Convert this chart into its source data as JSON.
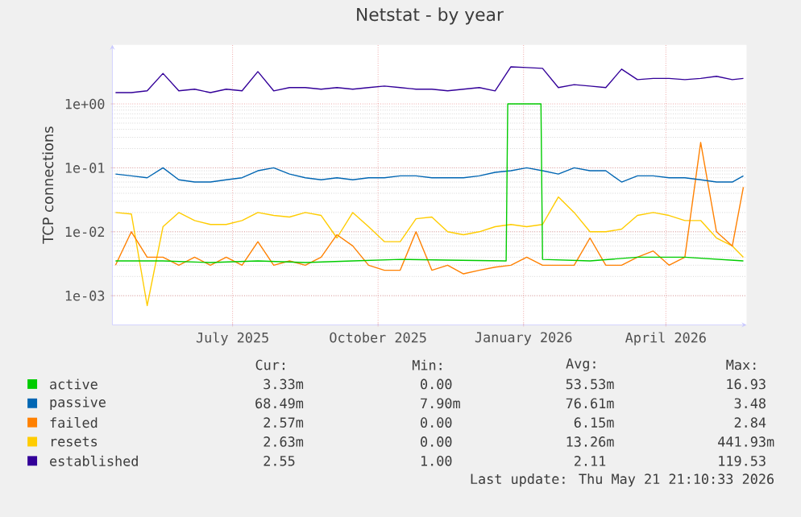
{
  "chart_data": {
    "type": "line",
    "title": "Netstat - by year",
    "ylabel": "TCP connections",
    "log": "y",
    "grid": true,
    "legend": "bottom",
    "xlim": [
      "2025-04-16",
      "2026-05-22"
    ],
    "xticks": [
      {
        "value": "2025-07-01",
        "label": "July 2025"
      },
      {
        "value": "2025-10-01",
        "label": "October 2025"
      },
      {
        "value": "2026-01-01",
        "label": "January 2026"
      },
      {
        "value": "2026-04-01",
        "label": "April 2026"
      }
    ],
    "ylim": [
      0.00035,
      8.4
    ],
    "yticks": [
      {
        "value": 0.001,
        "label": "1e-03"
      },
      {
        "value": 0.01,
        "label": "1e-02"
      },
      {
        "value": 0.1,
        "label": "1e-01"
      },
      {
        "value": 1,
        "label": "1e+00"
      }
    ],
    "x": [
      "2025-04-18",
      "2025-04-28",
      "2025-05-08",
      "2025-05-18",
      "2025-05-28",
      "2025-06-07",
      "2025-06-17",
      "2025-06-27",
      "2025-07-07",
      "2025-07-17",
      "2025-07-27",
      "2025-08-06",
      "2025-08-16",
      "2025-08-26",
      "2025-09-05",
      "2025-09-15",
      "2025-09-25",
      "2025-10-05",
      "2025-10-15",
      "2025-10-25",
      "2025-11-04",
      "2025-11-14",
      "2025-11-24",
      "2025-12-04",
      "2025-12-14",
      "2025-12-24",
      "2026-01-03",
      "2026-01-13",
      "2026-01-23",
      "2026-02-02",
      "2026-02-12",
      "2026-02-22",
      "2026-03-04",
      "2026-03-14",
      "2026-03-24",
      "2026-04-03",
      "2026-04-13",
      "2026-04-23",
      "2026-05-03",
      "2026-05-13",
      "2026-05-20"
    ],
    "series": [
      {
        "name": "active",
        "color": "#00cc00",
        "x": [
          "2025-04-18",
          "2025-05-18",
          "2025-06-17",
          "2025-07-17",
          "2025-08-16",
          "2025-09-15",
          "2025-10-15",
          "2025-11-14",
          "2025-12-21",
          "2025-12-22",
          "2026-01-12",
          "2026-01-13",
          "2026-02-12",
          "2026-03-14",
          "2026-04-13",
          "2026-05-20"
        ],
        "values": [
          0.0035,
          0.0035,
          0.0033,
          0.0035,
          0.0033,
          0.0035,
          0.0037,
          0.0036,
          0.0035,
          1.0,
          1.0,
          0.0037,
          0.0035,
          0.004,
          0.004,
          0.0035
        ]
      },
      {
        "name": "passive",
        "color": "#0066b3",
        "values": [
          0.08,
          0.075,
          0.07,
          0.1,
          0.065,
          0.06,
          0.06,
          0.065,
          0.07,
          0.09,
          0.1,
          0.08,
          0.07,
          0.065,
          0.07,
          0.065,
          0.07,
          0.07,
          0.075,
          0.075,
          0.07,
          0.07,
          0.07,
          0.075,
          0.085,
          0.09,
          0.1,
          0.09,
          0.08,
          0.1,
          0.09,
          0.09,
          0.06,
          0.075,
          0.075,
          0.07,
          0.07,
          0.065,
          0.06,
          0.06,
          0.075
        ]
      },
      {
        "name": "failed",
        "color": "#ff8000",
        "values": [
          0.003,
          0.01,
          0.004,
          0.004,
          0.003,
          0.004,
          0.003,
          0.004,
          0.003,
          0.007,
          0.003,
          0.0035,
          0.003,
          0.004,
          0.009,
          0.006,
          0.003,
          0.0025,
          0.0025,
          0.01,
          0.0025,
          0.003,
          0.0022,
          0.0025,
          0.0028,
          0.003,
          0.004,
          0.003,
          0.003,
          0.003,
          0.008,
          0.003,
          0.003,
          0.004,
          0.005,
          0.003,
          0.004,
          0.25,
          0.01,
          0.006,
          0.05
        ]
      },
      {
        "name": "resets",
        "color": "#ffcc00",
        "values": [
          0.02,
          0.019,
          0.0007,
          0.012,
          0.02,
          0.015,
          0.013,
          0.013,
          0.015,
          0.02,
          0.018,
          0.017,
          0.02,
          0.018,
          0.008,
          0.02,
          0.012,
          0.007,
          0.007,
          0.016,
          0.017,
          0.01,
          0.009,
          0.01,
          0.012,
          0.013,
          0.012,
          0.013,
          0.035,
          0.02,
          0.01,
          0.01,
          0.011,
          0.018,
          0.02,
          0.018,
          0.015,
          0.015,
          0.008,
          0.006,
          0.004
        ]
      },
      {
        "name": "established",
        "color": "#330099",
        "values": [
          1.5,
          1.5,
          1.6,
          3.0,
          1.6,
          1.7,
          1.5,
          1.7,
          1.6,
          3.2,
          1.6,
          1.8,
          1.8,
          1.7,
          1.8,
          1.7,
          1.8,
          1.9,
          1.8,
          1.7,
          1.7,
          1.6,
          1.7,
          1.8,
          1.6,
          3.8,
          3.7,
          3.6,
          1.8,
          2.0,
          1.9,
          1.8,
          3.5,
          2.4,
          2.5,
          2.5,
          2.4,
          2.5,
          2.7,
          2.4,
          2.5
        ]
      }
    ],
    "annotations": [
      "Cur:",
      "Min:",
      "Avg:",
      "Max:",
      "3.33m",
      "0.00",
      "53.53m",
      "16.93",
      "68.49m",
      "7.90m",
      "76.61m",
      "3.48",
      "2.57m",
      "0.00",
      "6.15m",
      "2.84",
      "2.63m",
      "0.00",
      "13.26m",
      "441.93m",
      "2.55",
      "1.00",
      "2.11",
      "119.53",
      "Last update: Thu May 21 21:10:33 2026"
    ]
  }
}
